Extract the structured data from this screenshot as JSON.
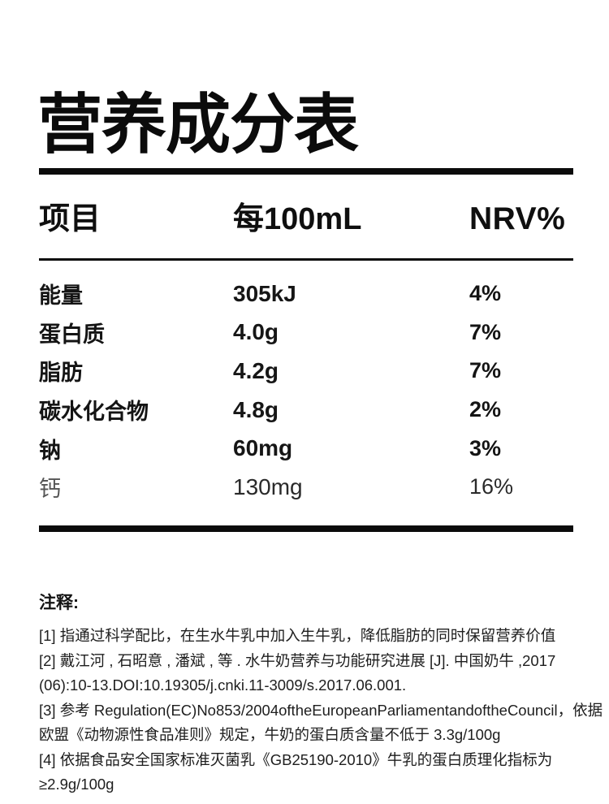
{
  "page": {
    "title": "营养成分表",
    "background_color": "#ffffff",
    "text_color": "#0b0b0b"
  },
  "table": {
    "headers": {
      "item": "项目",
      "per_100ml": "每100mL",
      "nrv": "NRV%"
    },
    "rows": [
      {
        "label": "能量",
        "value": "305kJ",
        "nrv": "4%"
      },
      {
        "label": "蛋白质",
        "value": "4.0g",
        "nrv": "7%"
      },
      {
        "label": "脂肪",
        "value": "4.2g",
        "nrv": "7%"
      },
      {
        "label": "碳水化合物",
        "value": "4.8g",
        "nrv": "2%"
      },
      {
        "label": "钠",
        "value": "60mg",
        "nrv": "3%"
      },
      {
        "label": "钙",
        "value": "130mg",
        "nrv": "16%"
      }
    ]
  },
  "notes": {
    "heading": "注释:",
    "items": [
      "[1] 指通过科学配比，在生水牛乳中加入生牛乳，降低脂肪的同时保留营养价值",
      "[2] 戴江河 , 石昭意 , 潘斌 , 等 . 水牛奶营养与功能研究进展 [J]. 中国奶牛 ,2017 (06):10-13.DOI:10.19305/j.cnki.11-3009/s.2017.06.001.",
      "[3] 参考 Regulation(EC)No853/2004oftheEuropeanParliamentandoftheCouncil，依据欧盟《动物源性食品准则》规定，牛奶的蛋白质含量不低于 3.3g/100g",
      "[4] 依据食品安全国家标准灭菌乳《GB25190-2010》牛乳的蛋白质理化指标为≥2.9g/100g"
    ]
  }
}
